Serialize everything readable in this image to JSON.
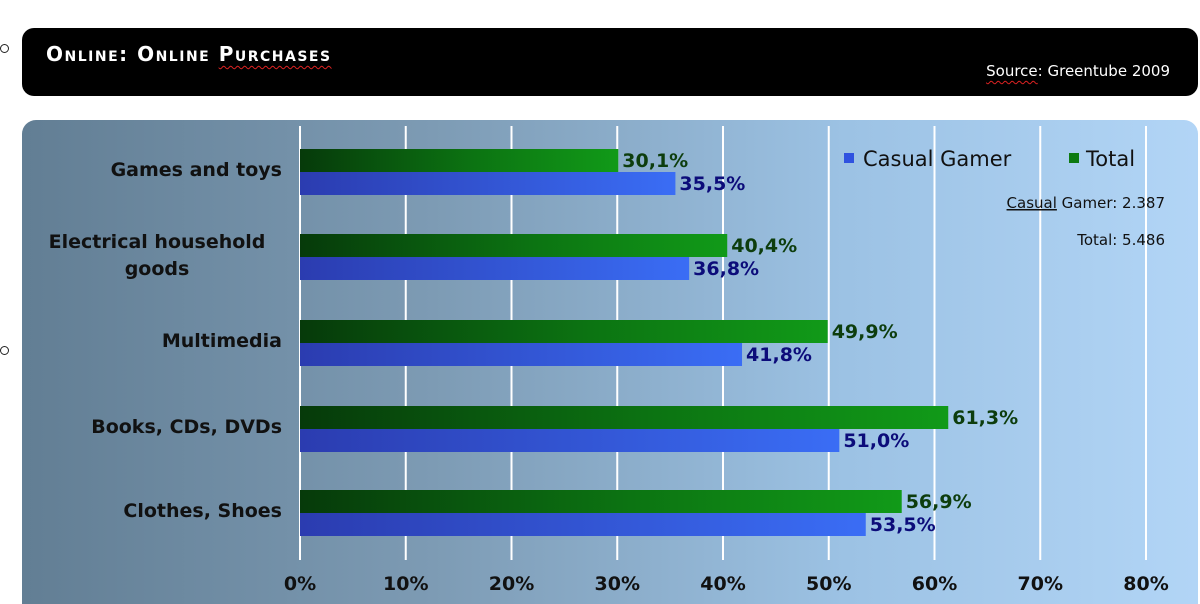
{
  "header": {
    "title_parts": [
      "Online: Online ",
      "Purchases"
    ],
    "source_parts": [
      "Source",
      ": Greentube 2009"
    ]
  },
  "notes": {
    "casual_parts": [
      "Casual",
      " Gamer: 2.387"
    ],
    "total": "Total: 5.486"
  },
  "colors": {
    "total_bar": "#0e8a12",
    "casual_bar": "#2f62f0",
    "total_label": "#0d3d0d",
    "casual_label": "#0c0c7a"
  },
  "chart_data": {
    "type": "bar",
    "orientation": "horizontal",
    "categories": [
      "Games and toys",
      "Electrical household goods",
      "Multimedia",
      "Books, CDs, DVDs",
      "Clothes, Shoes"
    ],
    "category_lines": [
      [
        "Games and toys"
      ],
      [
        "Electrical household",
        "goods"
      ],
      [
        "Multimedia"
      ],
      [
        "Books, CDs, DVDs"
      ],
      [
        "Clothes, Shoes"
      ]
    ],
    "series": [
      {
        "name": "Total",
        "values": [
          30.1,
          40.4,
          49.9,
          61.3,
          56.9
        ],
        "labels": [
          "30,1%",
          "40,4%",
          "49,9%",
          "61,3%",
          "56,9%"
        ]
      },
      {
        "name": "Casual Gamer",
        "values": [
          35.5,
          36.8,
          41.8,
          51.0,
          53.5
        ],
        "labels": [
          "35,5%",
          "36,8%",
          "41,8%",
          "51,0%",
          "53,5%"
        ]
      }
    ],
    "legend": [
      "Casual Gamer",
      "Total"
    ],
    "legend_position": "top-right",
    "xlim": [
      0,
      80
    ],
    "xticks": [
      0,
      10,
      20,
      30,
      40,
      50,
      60,
      70,
      80
    ],
    "xtick_labels": [
      "0%",
      "10%",
      "20%",
      "30%",
      "40%",
      "50%",
      "60%",
      "70%",
      "80%"
    ],
    "grid": true
  }
}
